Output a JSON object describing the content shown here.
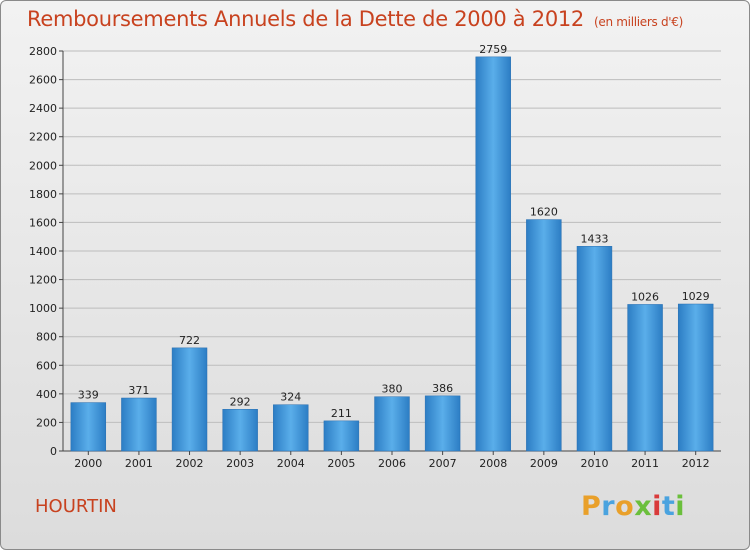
{
  "header": {
    "title": "Remboursements Annuels de la Dette de 2000 à 2012",
    "unit": "(en milliers d'€)"
  },
  "commune": "HOURTIN",
  "logo": {
    "text": "Proxiti",
    "colors": [
      "#e9a02a",
      "#4aa3df",
      "#e9a02a",
      "#6bbf3c",
      "#d93b3b",
      "#4aa3df",
      "#6bbf3c"
    ]
  },
  "chart_data": {
    "type": "bar",
    "title": "Remboursements Annuels de la Dette de 2000 à 2012",
    "xlabel": "",
    "ylabel": "",
    "categories": [
      "2000",
      "2001",
      "2002",
      "2003",
      "2004",
      "2005",
      "2006",
      "2007",
      "2008",
      "2009",
      "2010",
      "2011",
      "2012"
    ],
    "values": [
      339,
      371,
      722,
      292,
      324,
      211,
      380,
      386,
      2759,
      1620,
      1433,
      1026,
      1029
    ],
    "ylim": [
      0,
      2800
    ],
    "yticks": [
      0,
      200,
      400,
      600,
      800,
      1000,
      1200,
      1400,
      1600,
      1800,
      2000,
      2200,
      2400,
      2600,
      2800
    ],
    "grid": true,
    "bar_color": "#3d8fd6"
  }
}
